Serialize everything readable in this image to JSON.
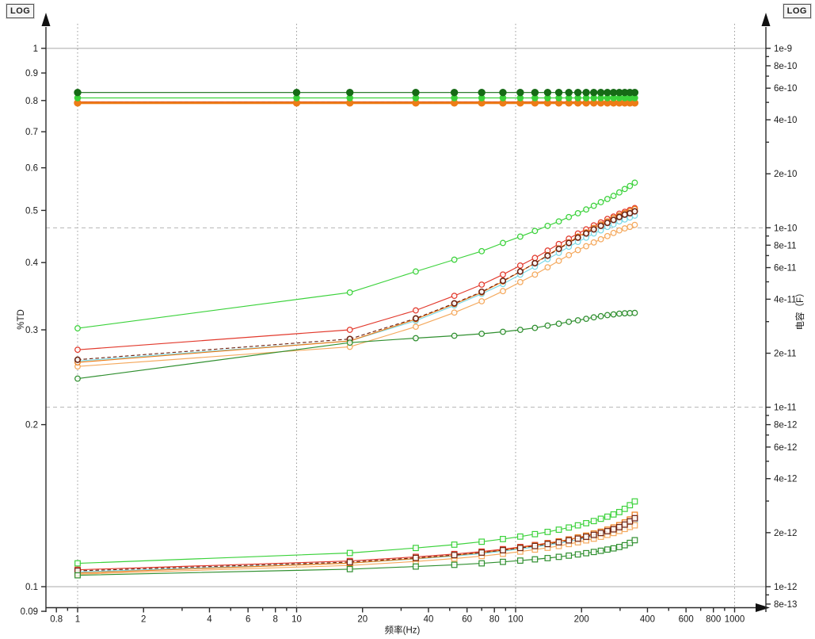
{
  "chart_data": {
    "type": "line",
    "title": "",
    "log_badge_left": "LOG",
    "log_badge_right": "LOG",
    "x_axis": {
      "label": "频率(Hz)",
      "scale": "log",
      "range": [
        0.8,
        1100
      ],
      "major_ticks": [
        0.8,
        1,
        2,
        4,
        6,
        8,
        10,
        20,
        40,
        60,
        80,
        100,
        200,
        400,
        600,
        800,
        1000
      ],
      "major_tick_labels": [
        "0.8",
        "1",
        "2",
        "4",
        "6",
        "8",
        "10",
        "20",
        "40",
        "60",
        "80",
        "100",
        "200",
        "400",
        "600",
        "800",
        "1000"
      ],
      "minor_ticks": [
        0.9,
        3,
        5,
        7,
        9,
        30,
        50,
        70,
        90,
        300,
        500,
        700,
        900
      ],
      "dotted_gridlines": [
        1,
        10,
        100,
        1000
      ]
    },
    "y_left": {
      "label": "%TD",
      "scale": "log",
      "range": [
        0.09,
        1.1
      ],
      "ticks": [
        1,
        0.9,
        0.8,
        0.7,
        0.6,
        0.5,
        0.4,
        0.3,
        0.2,
        0.1,
        0.09
      ],
      "tick_labels": [
        "1",
        "0.9",
        "0.8",
        "0.7",
        "0.6",
        "0.5",
        "0.4",
        "0.3",
        "0.2",
        "0.1",
        "0.09"
      ],
      "solid_gridlines": [
        1,
        0.1
      ]
    },
    "y_right": {
      "label": "电容（F）",
      "scale": "log",
      "range": [
        8e-13,
        1.1e-09
      ],
      "ticks": [
        1e-09,
        8e-10,
        6e-10,
        4e-10,
        2e-10,
        1e-10,
        8e-11,
        6e-11,
        4e-11,
        2e-11,
        1e-11,
        8e-12,
        6e-12,
        4e-12,
        2e-12,
        1e-12,
        8e-13
      ],
      "tick_labels": [
        "1e-9",
        "8e-10",
        "6e-10",
        "4e-10",
        "2e-10",
        "1e-10",
        "8e-11",
        "6e-11",
        "4e-11",
        "2e-11",
        "1e-11",
        "8e-12",
        "6e-12",
        "4e-12",
        "2e-12",
        "1e-12",
        "8e-13"
      ],
      "minor_ticks": [
        9e-10,
        7e-10,
        5e-10,
        3e-10,
        9e-11,
        7e-11,
        5e-11,
        3e-11,
        9e-12,
        7e-12,
        5e-12,
        3e-12,
        9e-13
      ],
      "dashed_gridlines": [
        1e-10,
        1e-11
      ]
    },
    "groups": [
      {
        "name": "bottom-squares",
        "marker": "open-square",
        "marker_size": 3.3,
        "frequencies": [
          1,
          17.5,
          35,
          52.5,
          70,
          87.5,
          105,
          122.5,
          140,
          157.5,
          175,
          192.5,
          210,
          227.5,
          245,
          262.5,
          280,
          297.5,
          315,
          332.5,
          350
        ],
        "series": [
          {
            "name": "cyan",
            "color": "#78d8e6",
            "values": [
              0.1065,
              0.1106,
              0.1126,
              0.114,
              0.1152,
              0.1164,
              0.1175,
              0.1185,
              0.1195,
              0.1204,
              0.1214,
              0.1223,
              0.1233,
              0.1243,
              0.1253,
              0.1263,
              0.1273,
              0.1285,
              0.1299,
              0.1315,
              0.133
            ]
          },
          {
            "name": "light-orange",
            "color": "#f4a95e",
            "values": [
              0.1055,
              0.1095,
              0.1114,
              0.1128,
              0.114,
              0.1151,
              0.1162,
              0.1172,
              0.1181,
              0.119,
              0.12,
              0.1209,
              0.1219,
              0.1228,
              0.1238,
              0.1248,
              0.1258,
              0.1269,
              0.128,
              0.1291,
              0.13
            ]
          },
          {
            "name": "red",
            "color": "#e2392c",
            "values": [
              0.1075,
              0.1116,
              0.1136,
              0.115,
              0.1162,
              0.1174,
              0.1185,
              0.1195,
              0.1205,
              0.1214,
              0.1224,
              0.1233,
              0.1243,
              0.1253,
              0.1263,
              0.1273,
              0.1283,
              0.1295,
              0.1309,
              0.1327,
              0.1345
            ]
          },
          {
            "name": "orange",
            "color": "#ed7c17",
            "values": [
              0.106,
              0.1106,
              0.1128,
              0.1143,
              0.1157,
              0.1169,
              0.1181,
              0.1192,
              0.1203,
              0.1213,
              0.1223,
              0.1234,
              0.1244,
              0.1255,
              0.1265,
              0.1276,
              0.1288,
              0.1301,
              0.1316,
              0.1333,
              0.136
            ]
          },
          {
            "name": "dark-red",
            "color": "#6f2413",
            "dash": "4.5 3",
            "values": [
              0.107,
              0.1111,
              0.1131,
              0.1145,
              0.1157,
              0.1169,
              0.118,
              0.119,
              0.12,
              0.1209,
              0.1219,
              0.1228,
              0.1238,
              0.1248,
              0.1258,
              0.1268,
              0.1278,
              0.129,
              0.1304,
              0.1322,
              0.134
            ]
          },
          {
            "name": "dark-green",
            "color": "#2f8f2f",
            "values": [
              0.105,
              0.1078,
              0.109,
              0.1098,
              0.1105,
              0.1112,
              0.1118,
              0.1124,
              0.113,
              0.1136,
              0.1142,
              0.1148,
              0.1154,
              0.116,
              0.1166,
              0.1172,
              0.1178,
              0.1185,
              0.1194,
              0.1206,
              0.122
            ]
          },
          {
            "name": "light-green",
            "color": "#3bd23b",
            "values": [
              0.1105,
              0.1155,
              0.118,
              0.1197,
              0.1212,
              0.1226,
              0.1239,
              0.1252,
              0.1264,
              0.1276,
              0.1288,
              0.13,
              0.1312,
              0.1324,
              0.1337,
              0.1349,
              0.1362,
              0.1376,
              0.1395,
              0.1417,
              0.144
            ]
          }
        ]
      },
      {
        "name": "middle-circles",
        "marker": "open-circle",
        "marker_size": 3.3,
        "frequencies": [
          1,
          17.5,
          35,
          52.5,
          70,
          87.5,
          105,
          122.5,
          140,
          157.5,
          175,
          192.5,
          210,
          227.5,
          245,
          262.5,
          280,
          297.5,
          315,
          332.5,
          350
        ],
        "series": [
          {
            "name": "cyan",
            "color": "#78d8e6",
            "values": [
              0.2625,
              0.286,
              0.312,
              0.333,
              0.35,
              0.365,
              0.38,
              0.393,
              0.406,
              0.417,
              0.428,
              0.437,
              0.445,
              0.453,
              0.459,
              0.466,
              0.471,
              0.477,
              0.481,
              0.485,
              0.489
            ]
          },
          {
            "name": "light-orange",
            "color": "#f4a95e",
            "values": [
              0.2565,
              0.279,
              0.304,
              0.323,
              0.339,
              0.354,
              0.368,
              0.38,
              0.392,
              0.403,
              0.413,
              0.422,
              0.429,
              0.436,
              0.442,
              0.448,
              0.454,
              0.459,
              0.463,
              0.466,
              0.47
            ]
          },
          {
            "name": "red",
            "color": "#e2392c",
            "values": [
              0.2755,
              0.3,
              0.326,
              0.347,
              0.364,
              0.38,
              0.395,
              0.408,
              0.421,
              0.433,
              0.443,
              0.453,
              0.461,
              0.469,
              0.475,
              0.482,
              0.487,
              0.493,
              0.497,
              0.501,
              0.505
            ]
          },
          {
            "name": "orange",
            "color": "#ed7c17",
            "values": [
              0.261,
              0.286,
              0.314,
              0.335,
              0.352,
              0.369,
              0.385,
              0.399,
              0.413,
              0.425,
              0.436,
              0.447,
              0.455,
              0.464,
              0.471,
              0.477,
              0.484,
              0.489,
              0.494,
              0.498,
              0.503
            ]
          },
          {
            "name": "dark-red",
            "color": "#6f2413",
            "dash": "4.5 3",
            "values": [
              0.264,
              0.2885,
              0.315,
              0.336,
              0.353,
              0.37,
              0.385,
              0.399,
              0.412,
              0.424,
              0.435,
              0.445,
              0.453,
              0.461,
              0.468,
              0.474,
              0.48,
              0.486,
              0.491,
              0.494,
              0.498
            ]
          },
          {
            "name": "dark-green",
            "color": "#2f8f2f",
            "values": [
              0.2435,
              0.284,
              0.2895,
              0.2925,
              0.295,
              0.2975,
              0.3,
              0.3025,
              0.3055,
              0.308,
              0.3105,
              0.3125,
              0.3145,
              0.3165,
              0.318,
              0.3195,
              0.3205,
              0.3215,
              0.322,
              0.3222,
              0.3225
            ]
          },
          {
            "name": "light-green",
            "color": "#3bd23b",
            "values": [
              0.302,
              0.352,
              0.385,
              0.405,
              0.42,
              0.435,
              0.447,
              0.458,
              0.468,
              0.477,
              0.486,
              0.494,
              0.502,
              0.51,
              0.518,
              0.525,
              0.532,
              0.54,
              0.548,
              0.555,
              0.563
            ]
          }
        ]
      },
      {
        "name": "top-flat-dots",
        "marker": "filled-circle",
        "marker_size": 4.2,
        "frequencies": [
          1,
          10,
          17.5,
          35,
          52.5,
          70,
          87.5,
          105,
          122.5,
          140,
          157.5,
          175,
          192.5,
          210,
          227.5,
          245,
          262.5,
          280,
          297.5,
          315,
          332.5,
          350
        ],
        "series": [
          {
            "name": "light-orange",
            "color": "#f4a95e",
            "value_const": 0.7902,
            "marker_size": 0
          },
          {
            "name": "red",
            "color": "#e2392c",
            "value_const": 0.7955,
            "marker_size": 0
          },
          {
            "name": "dark-red",
            "color": "#6f2413",
            "dash": "4.5 3",
            "value_const": 0.794,
            "marker_size": 0
          },
          {
            "name": "orange",
            "color": "#ed7c17",
            "value_const": 0.7918,
            "width": 2.8
          },
          {
            "name": "light-green",
            "color": "#3bd23b",
            "value_const": 0.809,
            "marker_size": 3.8
          },
          {
            "name": "dark-green",
            "color": "#166b16",
            "value_const": 0.828
          }
        ]
      }
    ]
  }
}
